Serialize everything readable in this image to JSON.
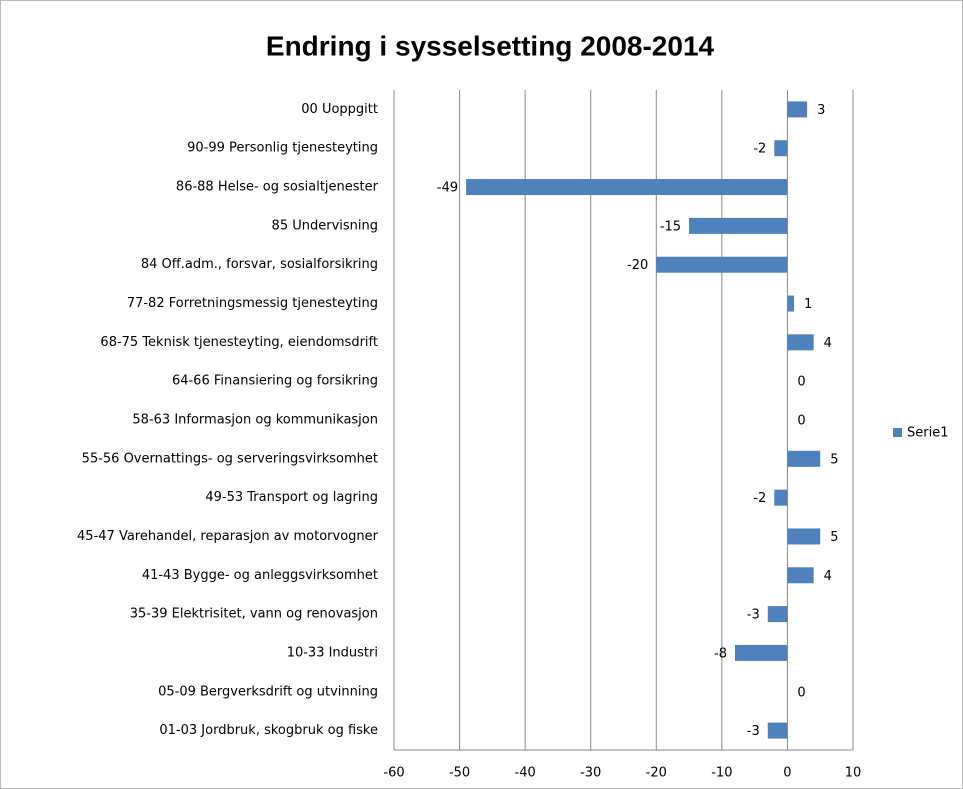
{
  "chart_data": {
    "type": "bar",
    "orientation": "horizontal",
    "title": "Endring i sysselsetting 2008-2014",
    "categories": [
      "00 Uoppgitt",
      "90-99 Personlig tjenesteyting",
      "86-88 Helse- og sosialtjenester",
      "85 Undervisning",
      "84 Off.adm., forsvar, sosialforsikring",
      "77-82 Forretningsmessig tjenesteyting",
      "68-75 Teknisk tjenesteyting, eiendomsdrift",
      "64-66 Finansiering og forsikring",
      "58-63 Informasjon og kommunikasjon",
      "55-56 Overnattings- og serveringsvirksomhet",
      "49-53 Transport og lagring",
      "45-47 Varehandel, reparasjon av motorvogner",
      "41-43 Bygge- og anleggsvirksomhet",
      "35-39 Elektrisitet, vann og renovasjon",
      "10-33 Industri",
      "05-09 Bergverksdrift og utvinning",
      "01-03 Jordbruk, skogbruk og fiske"
    ],
    "series": [
      {
        "name": "Serie1",
        "color": "#4f81bd",
        "values": [
          3,
          -2,
          -49,
          -15,
          -20,
          1,
          4,
          0,
          0,
          5,
          -2,
          5,
          4,
          -3,
          -8,
          0,
          -3
        ]
      }
    ],
    "xlim": [
      -60,
      10
    ],
    "xticks": [
      -60,
      -50,
      -40,
      -30,
      -20,
      -10,
      0,
      10
    ],
    "grid": true,
    "legend": "right"
  }
}
